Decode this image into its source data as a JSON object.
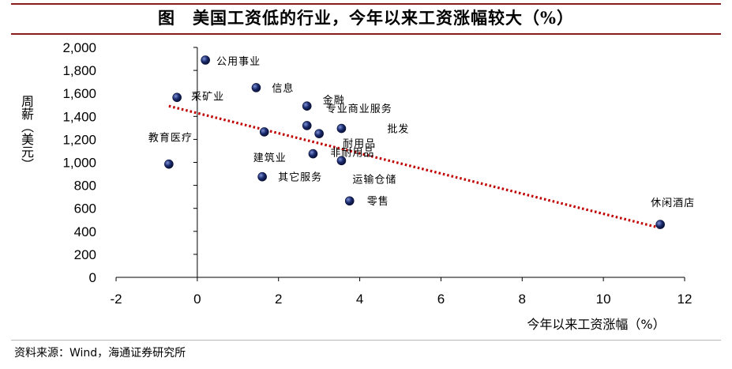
{
  "figure": {
    "prefix": "图",
    "title": "美国工资低的行业，今年以来工资涨幅较大（%）"
  },
  "source": "资料来源：Wind，海通证券研究所",
  "chart_data": {
    "type": "scatter",
    "title": "美国工资低的行业，今年以来工资涨幅较大（%）",
    "xlabel": "今年以来工资涨幅（%）",
    "ylabel": "周薪（美元）",
    "xlim": [
      -2,
      12
    ],
    "ylim": [
      0,
      2000
    ],
    "xticks": [
      -2,
      0,
      2,
      4,
      6,
      8,
      10,
      12
    ],
    "yticks": [
      0,
      200,
      400,
      600,
      800,
      1000,
      1200,
      1400,
      1600,
      1800,
      2000
    ],
    "ytick_labels": [
      "0",
      "200",
      "400",
      "600",
      "800",
      "1,000",
      "1,200",
      "1,400",
      "1,600",
      "1,800",
      "2,000"
    ],
    "grid": false,
    "point_color": "#1a2a6e",
    "trendline_color": "#c00000",
    "points": [
      {
        "label": "公用事业",
        "x": 0.2,
        "y": 1890
      },
      {
        "label": "信息",
        "x": 1.45,
        "y": 1650
      },
      {
        "label": "采矿业",
        "x": -0.5,
        "y": 1565
      },
      {
        "label": "金融",
        "x": 2.7,
        "y": 1490
      },
      {
        "label": "专业商业服务",
        "x": 2.7,
        "y": 1320
      },
      {
        "label": "批发",
        "x": 3.55,
        "y": 1295
      },
      {
        "label": "建筑业",
        "x": 1.65,
        "y": 1265
      },
      {
        "label": "耐用品",
        "x": 3.0,
        "y": 1250
      },
      {
        "label": "非耐用品",
        "x": 2.85,
        "y": 1075
      },
      {
        "label": "运输仓储",
        "x": 3.55,
        "y": 1015
      },
      {
        "label": "教育医疗",
        "x": -0.7,
        "y": 985
      },
      {
        "label": "其它服务",
        "x": 1.6,
        "y": 875
      },
      {
        "label": "零售",
        "x": 3.75,
        "y": 665
      },
      {
        "label": "休闲酒店",
        "x": 11.4,
        "y": 460
      }
    ],
    "trendline": {
      "x": [
        -0.7,
        11.4
      ],
      "y": [
        1490,
        430
      ]
    }
  }
}
